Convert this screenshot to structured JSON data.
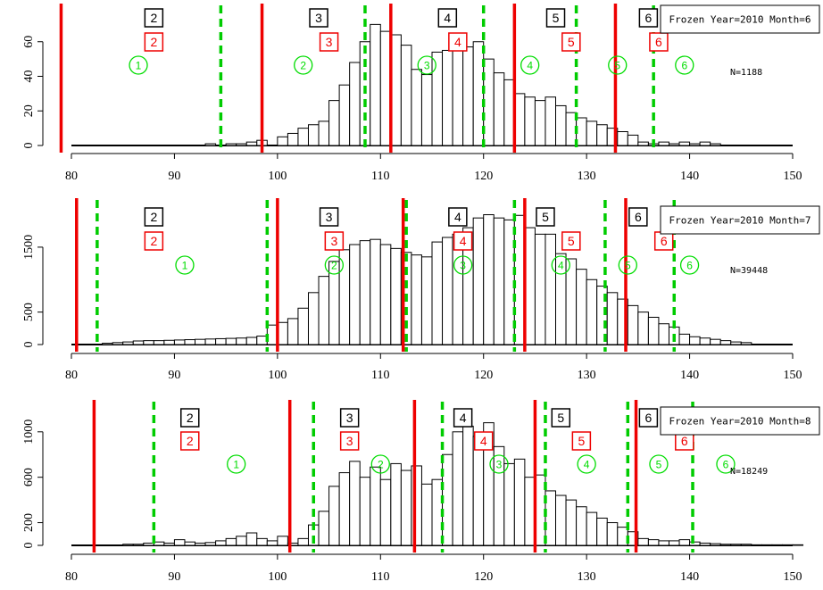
{
  "colors": {
    "red": "#ee0000",
    "green": "#00cc00",
    "bar_fill": "#ffffff",
    "bar_stroke": "#000000"
  },
  "chart_data": [
    {
      "type": "bar",
      "legend": "Frozen Year=2010 Month=6",
      "n_label": "N=1188",
      "x_ticks": [
        80,
        90,
        100,
        110,
        120,
        130,
        140,
        150
      ],
      "y_ticks": [
        0,
        20,
        40,
        60
      ],
      "xlim": [
        79,
        151
      ],
      "ylim": [
        0,
        80
      ],
      "bin_start": 93,
      "bin_width": 1,
      "values": [
        1,
        0,
        1,
        1,
        2,
        3,
        0,
        5,
        7,
        10,
        12,
        14,
        26,
        35,
        48,
        60,
        70,
        66,
        64,
        58,
        44,
        41,
        54,
        55,
        58,
        57,
        60,
        50,
        42,
        38,
        30,
        28,
        26,
        28,
        23,
        19,
        16,
        14,
        12,
        10,
        8,
        6,
        2,
        1,
        2,
        1,
        2,
        1,
        2,
        1,
        0,
        0
      ],
      "red_lines": [
        79,
        98.5,
        111,
        123,
        132.8
      ],
      "green_lines": [
        94.5,
        108.5,
        120,
        129,
        136.5
      ],
      "black_labels": [
        {
          "x": 88,
          "text": "2"
        },
        {
          "x": 104,
          "text": "3"
        },
        {
          "x": 116.5,
          "text": "4"
        },
        {
          "x": 127,
          "text": "5"
        },
        {
          "x": 136,
          "text": "6"
        }
      ],
      "red_labels": [
        {
          "x": 88,
          "text": "2"
        },
        {
          "x": 105,
          "text": "3"
        },
        {
          "x": 117.5,
          "text": "4"
        },
        {
          "x": 128.5,
          "text": "5"
        },
        {
          "x": 137,
          "text": "6"
        }
      ],
      "green_labels": [
        {
          "x": 86.5,
          "text": "1"
        },
        {
          "x": 102.5,
          "text": "2"
        },
        {
          "x": 114.5,
          "text": "3"
        },
        {
          "x": 124.5,
          "text": "4"
        },
        {
          "x": 133,
          "text": "5"
        },
        {
          "x": 139.5,
          "text": "6"
        }
      ]
    },
    {
      "type": "bar",
      "legend": "Frozen Year=2010 Month=7",
      "n_label": "N=39448",
      "x_ticks": [
        80,
        90,
        100,
        110,
        120,
        130,
        140,
        150
      ],
      "y_ticks": [
        0,
        500,
        1500
      ],
      "xlim": [
        79,
        151
      ],
      "ylim": [
        0,
        2200
      ],
      "bin_start": 83,
      "bin_width": 1,
      "values": [
        20,
        30,
        40,
        55,
        60,
        60,
        65,
        70,
        75,
        80,
        85,
        90,
        95,
        100,
        110,
        130,
        300,
        340,
        400,
        560,
        800,
        1050,
        1280,
        1460,
        1540,
        1600,
        1620,
        1540,
        1480,
        1420,
        1380,
        1350,
        1580,
        1650,
        1700,
        1800,
        1950,
        2000,
        1950,
        1920,
        1990,
        1800,
        1700,
        1700,
        1400,
        1320,
        1160,
        1000,
        900,
        800,
        700,
        600,
        500,
        420,
        320,
        270,
        160,
        120,
        100,
        80,
        60,
        40,
        30
      ],
      "red_lines": [
        80.5,
        100,
        112.2,
        124,
        133.8
      ],
      "green_lines": [
        82.5,
        99,
        112.5,
        123,
        131.8,
        138.5
      ],
      "black_labels": [
        {
          "x": 88,
          "text": "2"
        },
        {
          "x": 105,
          "text": "3"
        },
        {
          "x": 117.5,
          "text": "4"
        },
        {
          "x": 126,
          "text": "5"
        },
        {
          "x": 135,
          "text": "6"
        }
      ],
      "red_labels": [
        {
          "x": 88,
          "text": "2"
        },
        {
          "x": 105.5,
          "text": "3"
        },
        {
          "x": 118,
          "text": "4"
        },
        {
          "x": 128.5,
          "text": "5"
        },
        {
          "x": 137.5,
          "text": "6"
        }
      ],
      "green_labels": [
        {
          "x": 91,
          "text": "1"
        },
        {
          "x": 105.5,
          "text": "2"
        },
        {
          "x": 118,
          "text": "3"
        },
        {
          "x": 127.5,
          "text": "4"
        },
        {
          "x": 134,
          "text": "5"
        },
        {
          "x": 140,
          "text": "6"
        }
      ]
    },
    {
      "type": "bar",
      "legend": "Frozen Year=2010 Month=8",
      "n_label": "N=18249",
      "x_ticks": [
        80,
        90,
        100,
        110,
        120,
        130,
        140,
        150
      ],
      "y_ticks": [
        0,
        200,
        600,
        1000
      ],
      "xlim": [
        79,
        151
      ],
      "ylim": [
        0,
        1250
      ],
      "bin_start": 85,
      "bin_width": 1,
      "values": [
        10,
        10,
        20,
        30,
        20,
        50,
        30,
        20,
        25,
        40,
        60,
        80,
        110,
        60,
        40,
        80,
        20,
        60,
        180,
        300,
        520,
        640,
        740,
        600,
        690,
        580,
        720,
        660,
        700,
        540,
        580,
        800,
        1000,
        1050,
        960,
        1080,
        870,
        720,
        760,
        600,
        620,
        480,
        440,
        400,
        340,
        290,
        240,
        200,
        160,
        120,
        60,
        50,
        40,
        40,
        50,
        30,
        20,
        15,
        10,
        10,
        10,
        5,
        5,
        5,
        5,
        5
      ],
      "red_lines": [
        82.2,
        101.2,
        113.3,
        125,
        134.8
      ],
      "green_lines": [
        88,
        103.5,
        116,
        126,
        134,
        140.3
      ],
      "black_labels": [
        {
          "x": 91.5,
          "text": "2"
        },
        {
          "x": 107,
          "text": "3"
        },
        {
          "x": 118,
          "text": "4"
        },
        {
          "x": 127.5,
          "text": "5"
        },
        {
          "x": 136,
          "text": "6"
        }
      ],
      "red_labels": [
        {
          "x": 91.5,
          "text": "2"
        },
        {
          "x": 107,
          "text": "3"
        },
        {
          "x": 120,
          "text": "4"
        },
        {
          "x": 129.5,
          "text": "5"
        },
        {
          "x": 139.5,
          "text": "6"
        }
      ],
      "green_labels": [
        {
          "x": 96,
          "text": "1"
        },
        {
          "x": 110,
          "text": "2"
        },
        {
          "x": 121.5,
          "text": "3"
        },
        {
          "x": 130,
          "text": "4"
        },
        {
          "x": 137,
          "text": "5"
        },
        {
          "x": 143.5,
          "text": "6"
        }
      ]
    }
  ]
}
